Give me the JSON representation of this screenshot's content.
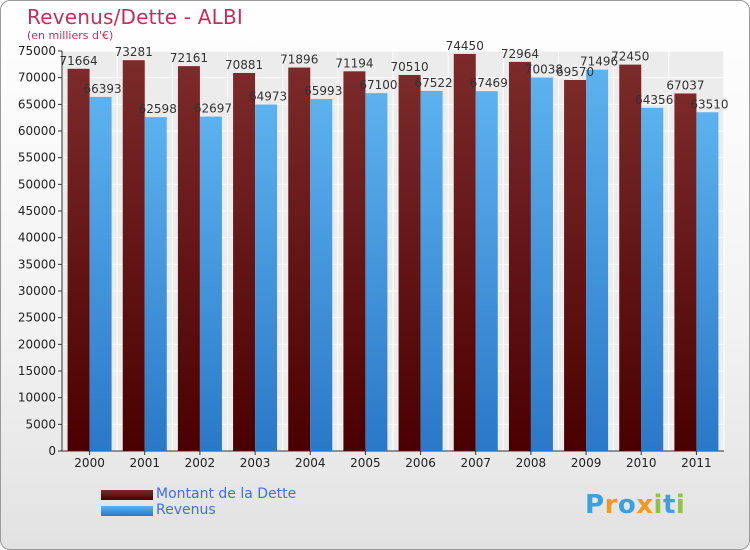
{
  "title": "Revenus/Dette - ALBI",
  "subtitle": "(en milliers d'€)",
  "logo": {
    "text": "Proxiti",
    "letters": [
      {
        "ch": "P",
        "color": "#3aa0e0"
      },
      {
        "ch": "r",
        "color": "#f29a1e"
      },
      {
        "ch": "o",
        "color": "#3aa0e0"
      },
      {
        "ch": "x",
        "color": "#f29a1e"
      },
      {
        "ch": "i",
        "color": "#8cc63f"
      },
      {
        "ch": "t",
        "color": "#3aa0e0"
      },
      {
        "ch": "i",
        "color": "#8cc63f"
      }
    ]
  },
  "chart_data": {
    "type": "bar",
    "title": "Revenus/Dette - ALBI",
    "subtitle": "(en milliers d'€)",
    "categories": [
      "2000",
      "2001",
      "2002",
      "2003",
      "2004",
      "2005",
      "2006",
      "2007",
      "2008",
      "2009",
      "2010",
      "2011"
    ],
    "series": [
      {
        "name": "Montant de la Dette",
        "color": "#6b1010",
        "values": [
          71664,
          73281,
          72161,
          70881,
          71896,
          71194,
          70510,
          74450,
          72964,
          69570,
          72450,
          67037
        ],
        "labels": [
          "71664",
          "73281",
          "72161",
          "70881",
          "71896",
          "71194",
          "70510",
          "74450",
          "72964",
          "69570",
          "72450",
          "67037"
        ]
      },
      {
        "name": "Revenus",
        "color": "#4aa0e0",
        "values": [
          66393,
          62598,
          62697,
          64973,
          65993,
          67100,
          67522,
          67469,
          70038,
          71496,
          64356,
          63510
        ],
        "labels": [
          "66393",
          "62598",
          "62697",
          "64973",
          "65993",
          "67100",
          "67522",
          "67469",
          "70038",
          "71496",
          "64356",
          "63510"
        ]
      }
    ],
    "ylim": [
      0,
      75000
    ],
    "yticks": [
      0,
      5000,
      10000,
      15000,
      20000,
      25000,
      30000,
      35000,
      40000,
      45000,
      50000,
      55000,
      60000,
      65000,
      70000,
      75000
    ],
    "grid": true,
    "legend": "bottom-left"
  }
}
